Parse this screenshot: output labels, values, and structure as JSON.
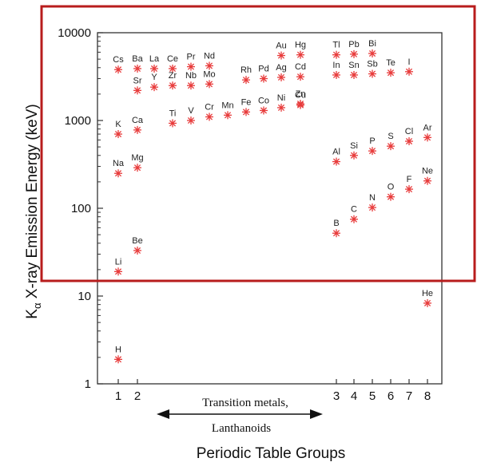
{
  "chart_data": {
    "type": "scatter",
    "title": "",
    "xlabel": "Periodic Table Groups",
    "ylabel_main": "K",
    "ylabel_sub": "α",
    "ylabel_rest": " X-ray Emission Energy (keV)",
    "y_scale": "log",
    "ylim": [
      1,
      10000
    ],
    "y_ticks": [
      {
        "value": 1,
        "label": "1"
      },
      {
        "value": 10,
        "label": "10"
      },
      {
        "value": 100,
        "label": "100"
      },
      {
        "value": 1000,
        "label": "1000"
      },
      {
        "value": 10000,
        "label": "10000"
      }
    ],
    "x_ticks": [
      {
        "x": 1,
        "label": "1"
      },
      {
        "x": 2,
        "label": "2"
      },
      {
        "x": 12,
        "label": "3"
      },
      {
        "x": 13,
        "label": "4"
      },
      {
        "x": 14,
        "label": "5"
      },
      {
        "x": 15,
        "label": "6"
      },
      {
        "x": 16,
        "label": "7"
      },
      {
        "x": 17,
        "label": "8"
      }
    ],
    "xlim": [
      0,
      18
    ],
    "annotations": {
      "line1": "Transition metals,",
      "line2": "Lanthanoids"
    },
    "marker_color": "#e83b3b",
    "highlight_color": "#b81c1c",
    "points": [
      {
        "el": "H",
        "x": 1,
        "y": 1.9
      },
      {
        "el": "Li",
        "x": 1,
        "y": 19
      },
      {
        "el": "Na",
        "x": 1,
        "y": 250
      },
      {
        "el": "K",
        "x": 1,
        "y": 700
      },
      {
        "el": "Cs",
        "x": 1,
        "y": 3800
      },
      {
        "el": "Be",
        "x": 2,
        "y": 33
      },
      {
        "el": "Mg",
        "x": 2,
        "y": 290
      },
      {
        "el": "Ca",
        "x": 2,
        "y": 780
      },
      {
        "el": "Sr",
        "x": 2,
        "y": 2200
      },
      {
        "el": "Ba",
        "x": 2,
        "y": 3900
      },
      {
        "el": "La",
        "x": 3,
        "y": 3900
      },
      {
        "el": "Y",
        "x": 3,
        "y": 2400
      },
      {
        "el": "Ti",
        "x": 4,
        "y": 930
      },
      {
        "el": "Zr",
        "x": 4,
        "y": 2500
      },
      {
        "el": "Ce",
        "x": 4,
        "y": 3900
      },
      {
        "el": "V",
        "x": 5,
        "y": 1000
      },
      {
        "el": "Nb",
        "x": 5,
        "y": 2500
      },
      {
        "el": "Pr",
        "x": 5,
        "y": 4100
      },
      {
        "el": "Cr",
        "x": 6,
        "y": 1100
      },
      {
        "el": "Mo",
        "x": 6,
        "y": 2600
      },
      {
        "el": "Nd",
        "x": 6,
        "y": 4200
      },
      {
        "el": "Mn",
        "x": 7,
        "y": 1150
      },
      {
        "el": "Fe",
        "x": 8,
        "y": 1250
      },
      {
        "el": "Rh",
        "x": 8,
        "y": 2900
      },
      {
        "el": "Co",
        "x": 9,
        "y": 1300
      },
      {
        "el": "Pd",
        "x": 9,
        "y": 3000
      },
      {
        "el": "Ni",
        "x": 10,
        "y": 1400
      },
      {
        "el": "Ag",
        "x": 10,
        "y": 3100
      },
      {
        "el": "Au",
        "x": 10,
        "y": 5500
      },
      {
        "el": "Cu",
        "x": 11,
        "y": 1500
      },
      {
        "el": "Cd",
        "x": 11,
        "y": 3150
      },
      {
        "el": "Hg",
        "x": 11,
        "y": 5600
      },
      {
        "el": "Zn",
        "x": 11,
        "y": 1550
      },
      {
        "el": "B",
        "x": 12,
        "y": 52
      },
      {
        "el": "Al",
        "x": 12,
        "y": 340
      },
      {
        "el": "In",
        "x": 12,
        "y": 3300
      },
      {
        "el": "Tl",
        "x": 12,
        "y": 5600
      },
      {
        "el": "C",
        "x": 13,
        "y": 75
      },
      {
        "el": "Si",
        "x": 13,
        "y": 400
      },
      {
        "el": "Sn",
        "x": 13,
        "y": 3300
      },
      {
        "el": "Pb",
        "x": 13,
        "y": 5700
      },
      {
        "el": "N",
        "x": 14,
        "y": 102
      },
      {
        "el": "P",
        "x": 14,
        "y": 450
      },
      {
        "el": "Sb",
        "x": 14,
        "y": 3400
      },
      {
        "el": "Bi",
        "x": 14,
        "y": 5800
      },
      {
        "el": "O",
        "x": 15,
        "y": 135
      },
      {
        "el": "S",
        "x": 15,
        "y": 510
      },
      {
        "el": "Te",
        "x": 15,
        "y": 3500
      },
      {
        "el": "F",
        "x": 16,
        "y": 165
      },
      {
        "el": "Cl",
        "x": 16,
        "y": 580
      },
      {
        "el": "I",
        "x": 16,
        "y": 3600
      },
      {
        "el": "He",
        "x": 17,
        "y": 8.3
      },
      {
        "el": "Ne",
        "x": 17,
        "y": 205
      },
      {
        "el": "Ar",
        "x": 17,
        "y": 640
      }
    ]
  }
}
